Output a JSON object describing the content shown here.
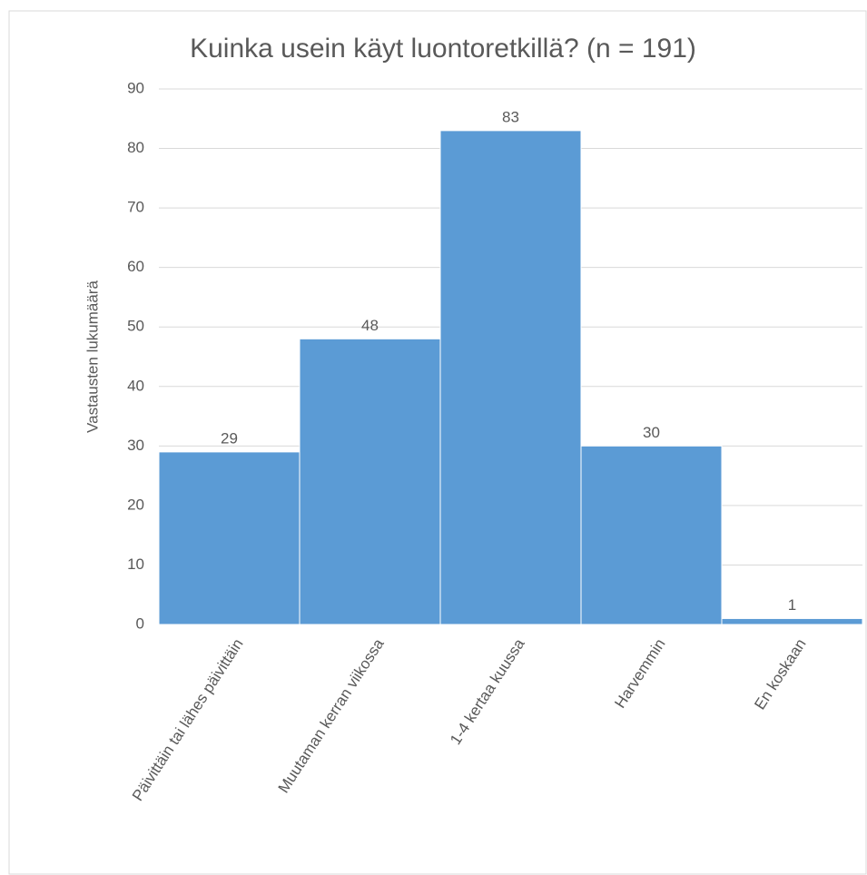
{
  "chart_data": {
    "type": "bar",
    "title": "Kuinka usein käyt luontoretkillä? (n = 191)",
    "y_label": "Vastausten lukumäärä",
    "categories": [
      "Päivittäin tai lähes päivittäin",
      "Muutaman kerran viikossa",
      "1-4 kertaa kuussa",
      "Harvemmin",
      "En koskaan"
    ],
    "values": [
      29,
      48,
      83,
      30,
      1
    ],
    "color": "#5b9bd5",
    "ylim": [
      0,
      90
    ],
    "yticks": [
      0,
      10,
      20,
      30,
      40,
      50,
      60,
      70,
      80,
      90
    ],
    "grid": true
  }
}
